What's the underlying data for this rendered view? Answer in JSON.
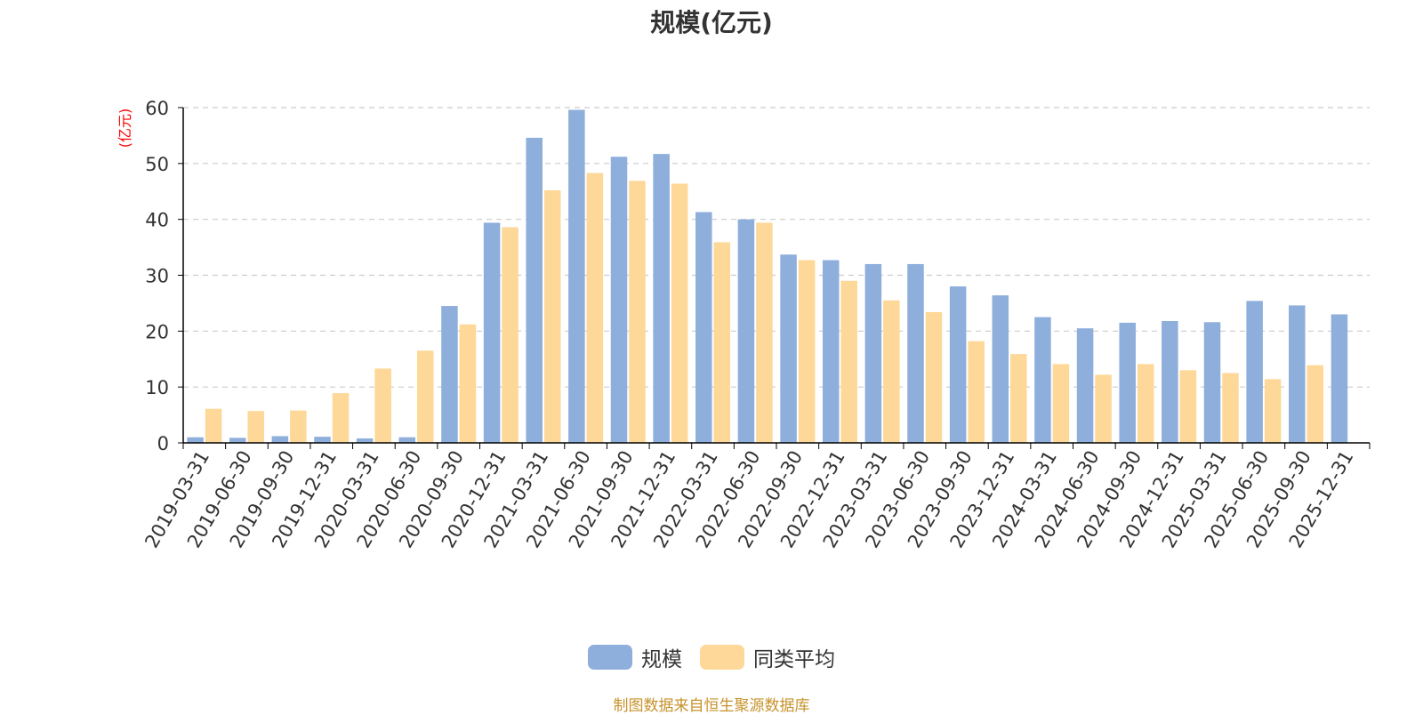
{
  "chart_data": {
    "type": "bar",
    "title": "规模(亿元)",
    "ylabel": "(亿元)",
    "xlabel": "",
    "ylim": [
      0,
      60
    ],
    "yticks": [
      0,
      10,
      20,
      30,
      40,
      50,
      60
    ],
    "grid": "horizontal dashed",
    "legend_position": "bottom-center",
    "categories": [
      "2019-03-31",
      "2019-06-30",
      "2019-09-30",
      "2019-12-31",
      "2020-03-31",
      "2020-06-30",
      "2020-09-30",
      "2020-12-31",
      "2021-03-31",
      "2021-06-30",
      "2021-09-30",
      "2021-12-31",
      "2022-03-31",
      "2022-06-30",
      "2022-09-30",
      "2022-12-31",
      "2023-03-31",
      "2023-06-30",
      "2023-09-30",
      "2023-12-31",
      "2024-03-31",
      "2024-06-30",
      "2024-09-30",
      "2024-12-31",
      "2025-03-31",
      "2025-06-30",
      "2025-09-30",
      "2025-12-31"
    ],
    "series": [
      {
        "name": "规模",
        "color": "#8eaedb",
        "values": [
          1.0,
          0.9,
          1.2,
          1.1,
          0.8,
          1.0,
          24.5,
          39.4,
          54.6,
          59.6,
          51.2,
          51.7,
          41.3,
          40.0,
          33.7,
          32.7,
          32.0,
          32.0,
          28.0,
          26.4,
          22.5,
          20.5,
          21.5,
          21.8,
          21.6,
          25.4,
          24.6,
          23.0
        ]
      },
      {
        "name": "同类平均",
        "color": "#fdd898",
        "values": [
          6.1,
          5.7,
          5.8,
          8.9,
          13.3,
          16.5,
          21.2,
          38.6,
          45.2,
          48.3,
          46.9,
          46.4,
          35.9,
          39.4,
          32.7,
          29.0,
          25.5,
          23.4,
          18.2,
          15.9,
          14.1,
          12.2,
          14.1,
          13.0,
          12.5,
          11.4,
          13.9,
          null
        ]
      }
    ],
    "colors": {
      "axis": "#000000",
      "grid": "#cccccc",
      "ylabel": "#ff0000",
      "source": "#c7922b",
      "text": "#333333"
    }
  },
  "footer": {
    "source": "制图数据来自恒生聚源数据库"
  }
}
